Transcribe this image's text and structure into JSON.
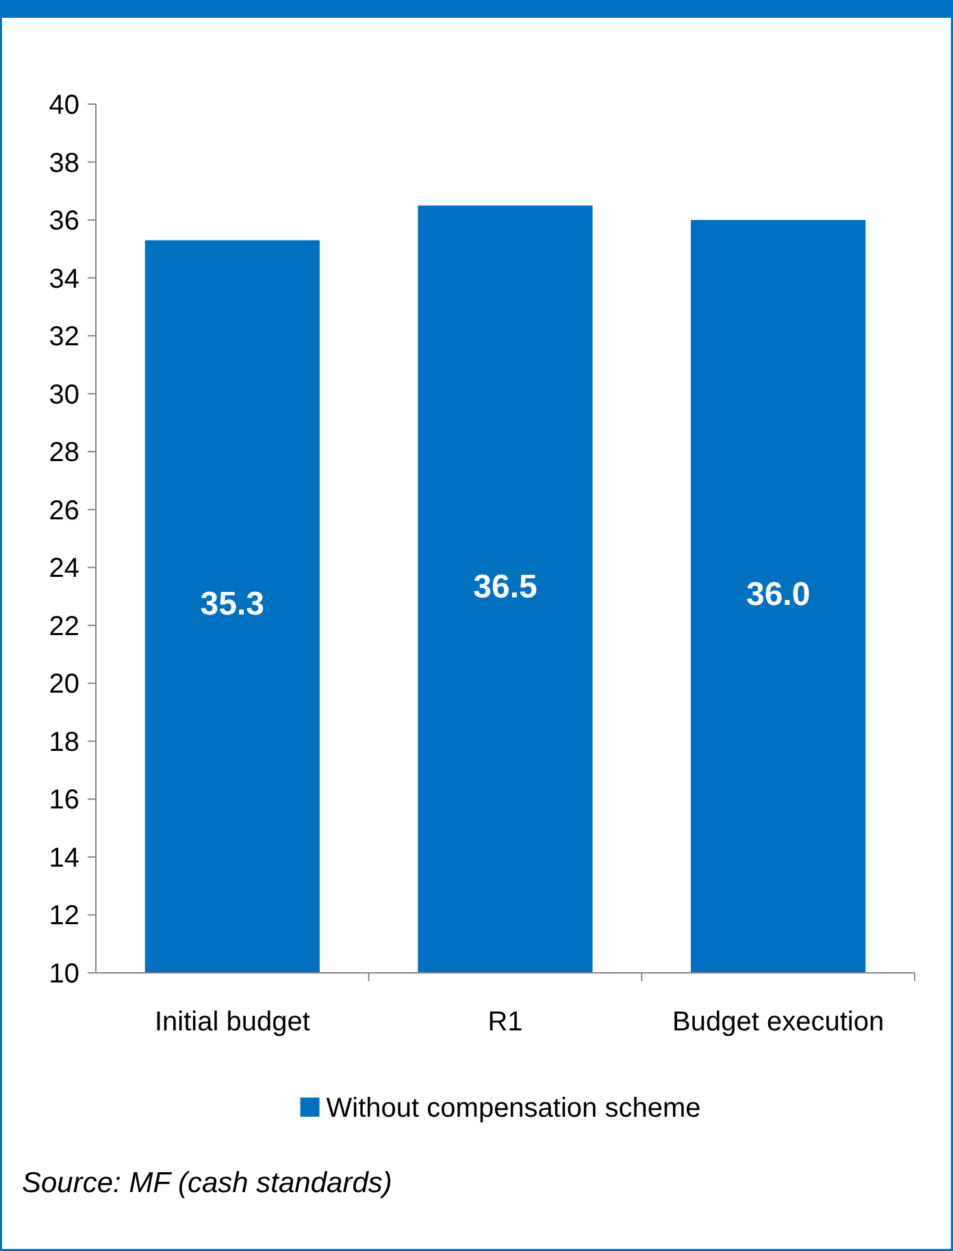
{
  "chart_data": {
    "type": "bar",
    "categories": [
      "Initial budget",
      "R1",
      "Budget execution"
    ],
    "series": [
      {
        "name": "Without compensation scheme",
        "color": "#0070c0",
        "values": [
          35.3,
          36.5,
          36.0
        ],
        "value_labels": [
          "35.3",
          "36.5",
          "36.0"
        ]
      }
    ],
    "ylim": [
      10,
      40
    ],
    "yticks": [
      10,
      12,
      14,
      16,
      18,
      20,
      22,
      24,
      26,
      28,
      30,
      32,
      34,
      36,
      38,
      40
    ],
    "grid": false,
    "legend": "bottom",
    "annotations": [
      "Source: MF (cash standards)"
    ]
  }
}
